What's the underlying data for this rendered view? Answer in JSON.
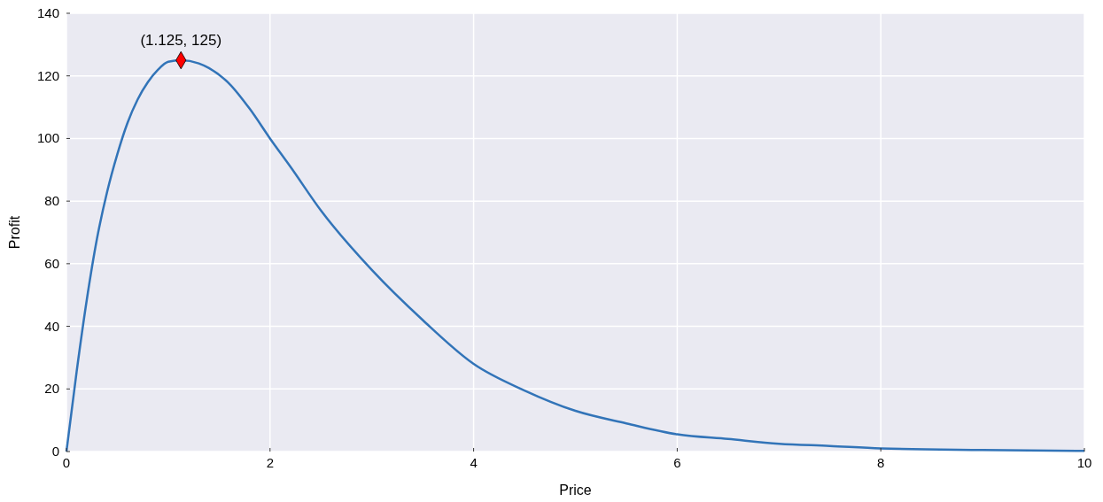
{
  "chart_data": {
    "type": "line",
    "xlabel": "Price",
    "ylabel": "Profit",
    "xlim": [
      0,
      10
    ],
    "ylim": [
      0,
      140
    ],
    "xticks": [
      0,
      2,
      4,
      6,
      8,
      10
    ],
    "yticks": [
      0,
      20,
      40,
      60,
      80,
      100,
      120,
      140
    ],
    "grid": true,
    "series": [
      {
        "color": "#3274b8",
        "marker": "none",
        "line_style": "solid",
        "x": [
          0,
          0.1,
          0.2,
          0.3,
          0.4,
          0.5,
          0.6,
          0.7,
          0.8,
          0.9,
          1.0,
          1.125,
          1.3,
          1.4,
          1.6,
          1.8,
          2.0,
          2.2,
          2.5,
          3.0,
          3.5,
          4.0,
          4.5,
          5.0,
          5.5,
          6.0,
          6.5,
          7.0,
          7.5,
          8.0,
          9.0,
          10.0
        ],
        "values": [
          0,
          25.5,
          48.5,
          68,
          83,
          95,
          105,
          112.5,
          118,
          122,
          124.5,
          125,
          124,
          122.5,
          117.5,
          109.5,
          100,
          91,
          77,
          58,
          42,
          28,
          19.5,
          13,
          9,
          5.5,
          4,
          2.5,
          1.8,
          1,
          0.5,
          0.2
        ]
      },
      {
        "type": "scatter",
        "color": "#ff0000",
        "marker": "diamond",
        "x": [
          1.125
        ],
        "values": [
          125
        ]
      }
    ],
    "annotations": [
      {
        "text": "(1.125, 125)",
        "x": 1.125,
        "y": 125
      }
    ]
  }
}
